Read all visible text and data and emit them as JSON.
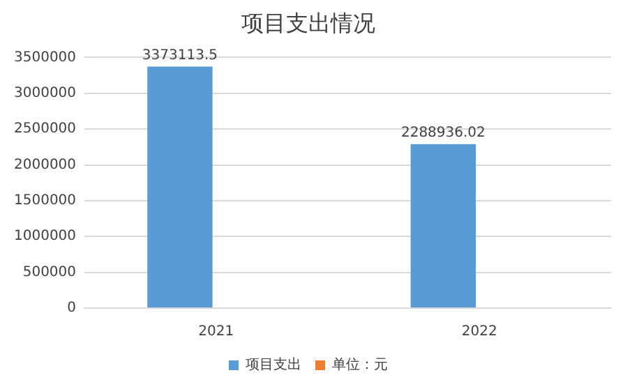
{
  "chart_data": {
    "type": "bar",
    "title": "项目支出情况",
    "categories": [
      "2021",
      "2022"
    ],
    "series": [
      {
        "name": "项目支出",
        "color": "#5b9bd5",
        "values": [
          3373113.5,
          2288936.02
        ]
      },
      {
        "name": "单位：元",
        "color": "#ed7d31",
        "values": [
          null,
          null
        ]
      }
    ],
    "ylim": [
      0,
      3500000
    ],
    "yticks": [
      0,
      500000,
      1000000,
      1500000,
      2000000,
      2500000,
      3000000,
      3500000
    ],
    "grid": "y",
    "legend": "bottom",
    "data_labels": true
  }
}
